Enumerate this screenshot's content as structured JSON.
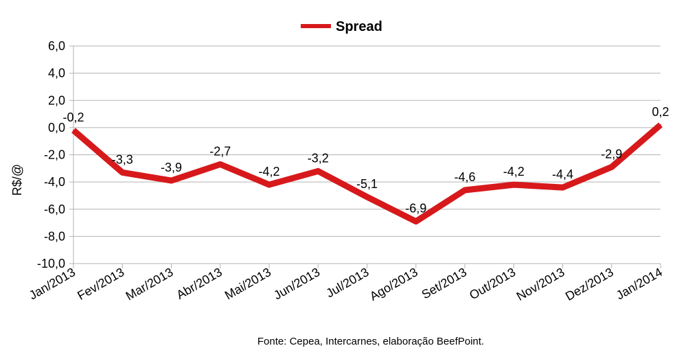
{
  "chart_data": {
    "type": "line",
    "title": "",
    "xlabel": "",
    "ylabel": "R$/@",
    "ylim": [
      -10,
      6
    ],
    "y_ticks": [
      6,
      4,
      2,
      0,
      -2,
      -4,
      -6,
      -8,
      -10
    ],
    "y_tick_labels": [
      "6,0",
      "4,0",
      "2,0",
      "0,0",
      "-2,0",
      "-4,0",
      "-6,0",
      "-8,0",
      "-10,0"
    ],
    "grid": true,
    "legend_position": "top-center",
    "categories": [
      "Jan/2013",
      "Fev/2013",
      "Mar/2013",
      "Abr/2013",
      "Mai/2013",
      "Jun/2013",
      "Jul/2013",
      "Ago/2013",
      "Set/2013",
      "Out/2013",
      "Nov/2013",
      "Dez/2013",
      "Jan/2014"
    ],
    "series": [
      {
        "name": "Spread",
        "color": "#d7191c",
        "values": [
          -0.2,
          -3.3,
          -3.9,
          -2.7,
          -4.2,
          -3.2,
          -5.1,
          -6.9,
          -4.6,
          -4.2,
          -4.4,
          -2.9,
          0.2
        ],
        "data_labels": [
          "-0,2",
          "-3,3",
          "-3,9",
          "-2,7",
          "-4,2",
          "-3,2",
          "-5,1",
          "-6,9",
          "-4,6",
          "-4,2",
          "-4,4",
          "-2,9",
          "0,2"
        ]
      }
    ],
    "source": "Fonte: Cepea, Intercarnes, elaboração BeefPoint."
  }
}
